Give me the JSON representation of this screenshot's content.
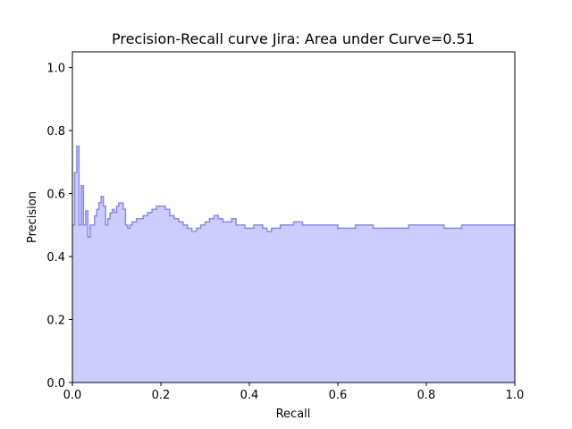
{
  "chart_data": {
    "type": "area",
    "title": "Precision-Recall curve Jira: Area under Curve=0.51",
    "xlabel": "Recall",
    "ylabel": "Precision",
    "xlim": [
      0.0,
      1.0
    ],
    "ylim": [
      0.0,
      1.05
    ],
    "xticks": [
      "0.0",
      "0.2",
      "0.4",
      "0.6",
      "0.8",
      "1.0"
    ],
    "yticks": [
      "0.0",
      "0.2",
      "0.4",
      "0.6",
      "0.8",
      "1.0"
    ],
    "xtick_values": [
      0.0,
      0.2,
      0.4,
      0.6,
      0.8,
      1.0
    ],
    "ytick_values": [
      0.0,
      0.2,
      0.4,
      0.6,
      0.8,
      1.0
    ],
    "grid": false,
    "step": "post",
    "fill_color": "#ccccff",
    "line_color": "#8888ee",
    "series": [
      {
        "x": [
          0.0,
          0.005,
          0.01,
          0.015,
          0.02,
          0.025,
          0.03,
          0.035,
          0.04,
          0.045,
          0.05,
          0.055,
          0.06,
          0.065,
          0.07,
          0.075,
          0.08,
          0.085,
          0.09,
          0.095,
          0.1,
          0.105,
          0.11,
          0.115,
          0.12,
          0.125,
          0.13,
          0.135,
          0.14,
          0.145,
          0.15,
          0.16,
          0.17,
          0.18,
          0.19,
          0.2,
          0.21,
          0.22,
          0.23,
          0.24,
          0.25,
          0.26,
          0.27,
          0.28,
          0.29,
          0.3,
          0.31,
          0.32,
          0.33,
          0.34,
          0.35,
          0.36,
          0.37,
          0.38,
          0.39,
          0.4,
          0.41,
          0.42,
          0.43,
          0.44,
          0.45,
          0.46,
          0.47,
          0.48,
          0.5,
          0.52,
          0.54,
          0.56,
          0.58,
          0.6,
          0.62,
          0.64,
          0.66,
          0.68,
          0.7,
          0.72,
          0.74,
          0.76,
          0.78,
          0.8,
          0.82,
          0.84,
          0.86,
          0.88,
          0.9,
          0.92,
          0.94,
          0.96,
          0.98,
          1.0
        ],
        "y": [
          0.5,
          0.667,
          0.75,
          0.5,
          0.625,
          0.5,
          0.545,
          0.462,
          0.5,
          0.5,
          0.529,
          0.55,
          0.571,
          0.591,
          0.56,
          0.5,
          0.52,
          0.538,
          0.55,
          0.54,
          0.56,
          0.57,
          0.57,
          0.55,
          0.5,
          0.49,
          0.5,
          0.51,
          0.51,
          0.52,
          0.52,
          0.53,
          0.54,
          0.55,
          0.56,
          0.56,
          0.55,
          0.53,
          0.52,
          0.51,
          0.5,
          0.49,
          0.48,
          0.49,
          0.5,
          0.51,
          0.52,
          0.53,
          0.52,
          0.51,
          0.51,
          0.52,
          0.5,
          0.5,
          0.49,
          0.49,
          0.5,
          0.5,
          0.49,
          0.48,
          0.49,
          0.49,
          0.5,
          0.5,
          0.51,
          0.5,
          0.5,
          0.5,
          0.5,
          0.49,
          0.49,
          0.5,
          0.5,
          0.49,
          0.49,
          0.49,
          0.49,
          0.5,
          0.5,
          0.5,
          0.5,
          0.49,
          0.49,
          0.5,
          0.5,
          0.5,
          0.5,
          0.5,
          0.5,
          0.5
        ]
      }
    ]
  }
}
